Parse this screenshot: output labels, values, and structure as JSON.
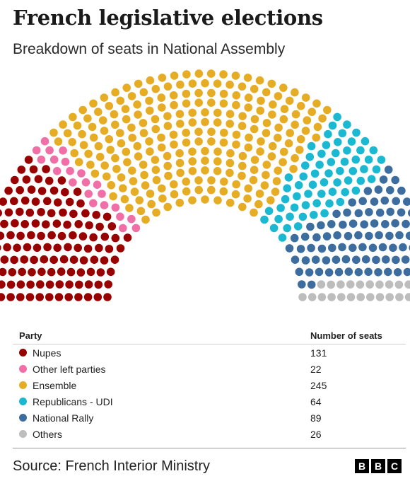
{
  "title": "French legislative elections",
  "subtitle": "Breakdown of seats in National Assembly",
  "table": {
    "header_party": "Party",
    "header_seats": "Number of seats"
  },
  "source": "Source: French Interior Ministry",
  "logo": [
    "B",
    "B",
    "C"
  ],
  "chart_data": {
    "type": "hemicycle",
    "title": "French legislative elections",
    "subtitle": "Breakdown of seats in National Assembly",
    "total_seats": 577,
    "series": [
      {
        "name": "Nupes",
        "value": 131,
        "color": "#990000"
      },
      {
        "name": "Other left parties",
        "value": 22,
        "color": "#f06fa6"
      },
      {
        "name": "Ensemble",
        "value": 245,
        "color": "#e6ac24"
      },
      {
        "name": "Republicans - UDI",
        "value": 64,
        "color": "#1bb8d2"
      },
      {
        "name": "National Rally",
        "value": 89,
        "color": "#3d6d9f"
      },
      {
        "name": "Others",
        "value": 26,
        "color": "#bdbdbd"
      }
    ]
  }
}
